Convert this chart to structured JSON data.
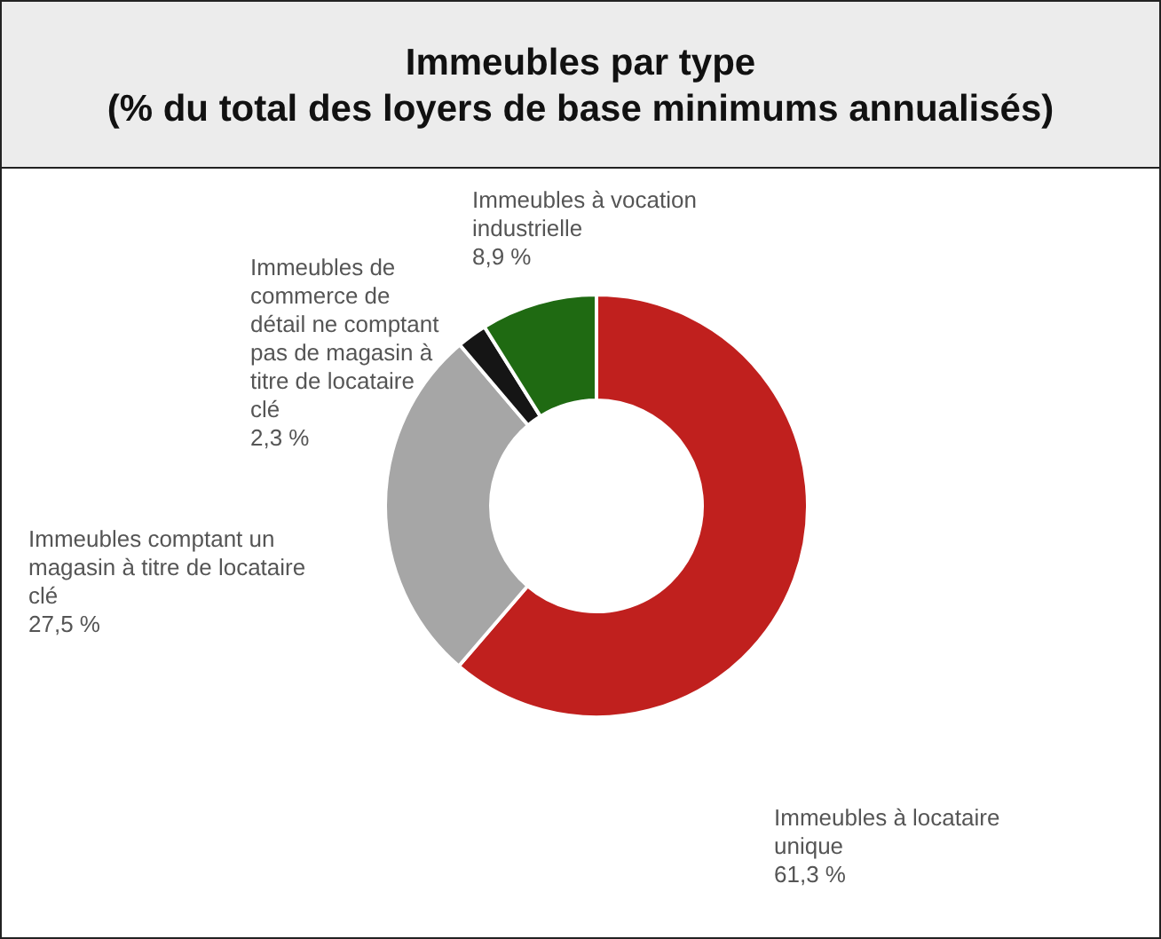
{
  "chart_data": {
    "type": "donut",
    "title": "Immeubles par type",
    "subtitle": "(% du total des loyers de base minimums annualisés)",
    "categories": [
      "Immeubles à locataire unique",
      "Immeubles comptant un magasin à titre de locataire clé",
      "Immeubles de commerce de détail ne comptant pas de magasin à titre de locataire clé",
      "Immeubles à vocation industrielle"
    ],
    "values": [
      61.3,
      27.5,
      2.3,
      8.9
    ],
    "value_labels": [
      "61,3 %",
      "27,5 %",
      "2,3 %",
      "8,9 %"
    ],
    "colors": [
      "#c0201e",
      "#a6a6a6",
      "#151515",
      "#1f6a12"
    ],
    "legend": false
  }
}
